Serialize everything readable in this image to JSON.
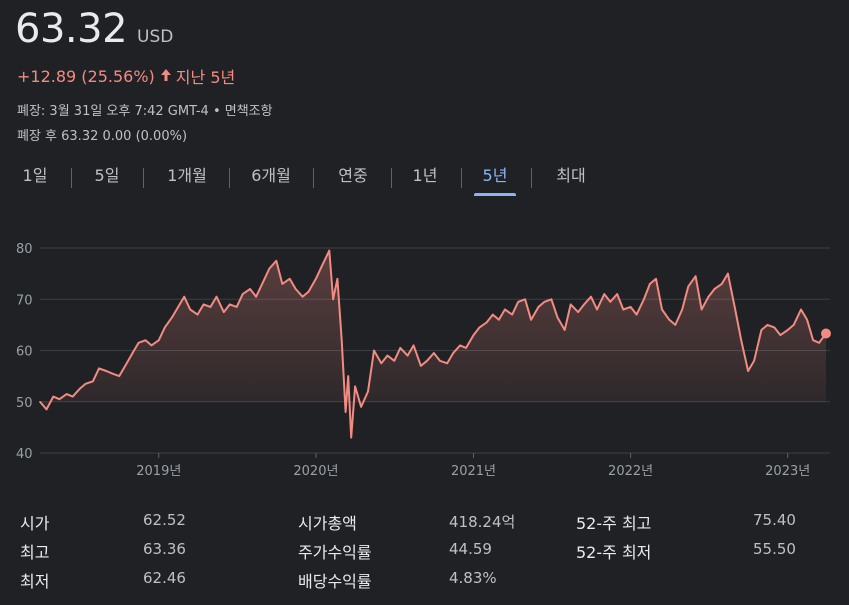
{
  "quote": {
    "price": "63.32",
    "currency": "USD",
    "change": "+12.89 (25.56%)",
    "period": "지난 5년",
    "close_info": "폐장: 3월 31일 오후 7:42 GMT-4 • 면책조항",
    "after_hours": "폐장 후 63.32 0.00 (0.00%)"
  },
  "tabs": [
    {
      "label": "1일"
    },
    {
      "label": "5일"
    },
    {
      "label": "1개월"
    },
    {
      "label": "6개월"
    },
    {
      "label": "연중"
    },
    {
      "label": "1년"
    },
    {
      "label": "5년"
    },
    {
      "label": "최대"
    }
  ],
  "stats": {
    "open_label": "시가",
    "open_value": "62.52",
    "high_label": "최고",
    "high_value": "63.36",
    "low_label": "최저",
    "low_value": "62.46",
    "mktcap_label": "시가총액",
    "mktcap_value": "418.24억",
    "pe_label": "주가수익률",
    "pe_value": "44.59",
    "div_label": "배당수익률",
    "div_value": "4.83%",
    "high52_label": "52-주 최고",
    "high52_value": "75.40",
    "low52_label": "52-주 최저",
    "low52_value": "55.50"
  },
  "colors": {
    "line": "#f28b82",
    "active_tab": "#8ab4f8",
    "background": "#202124"
  },
  "chart_data": {
    "type": "area",
    "xlabel": "",
    "ylabel": "",
    "ylim": [
      40,
      80
    ],
    "xlim": [
      "2018-03-31",
      "2023-03-31"
    ],
    "yticks": [
      40,
      50,
      60,
      70,
      80
    ],
    "xticks": [
      {
        "label": "2019년",
        "date": "2019-01-01"
      },
      {
        "label": "2020년",
        "date": "2020-01-01"
      },
      {
        "label": "2021년",
        "date": "2021-01-01"
      },
      {
        "label": "2022년",
        "date": "2022-01-01"
      },
      {
        "label": "2023년",
        "date": "2023-01-01"
      }
    ],
    "grid": true,
    "series": [
      {
        "x": [
          "2018-03-31",
          "2018-04-15",
          "2018-05-01",
          "2018-05-15",
          "2018-06-01",
          "2018-06-15",
          "2018-07-01",
          "2018-07-15",
          "2018-08-01",
          "2018-08-15",
          "2018-09-01",
          "2018-09-15",
          "2018-10-01",
          "2018-10-15",
          "2018-11-01",
          "2018-11-15",
          "2018-12-01",
          "2018-12-15",
          "2019-01-01",
          "2019-01-15",
          "2019-02-01",
          "2019-02-15",
          "2019-03-01",
          "2019-03-15",
          "2019-04-01",
          "2019-04-15",
          "2019-05-01",
          "2019-05-15",
          "2019-06-01",
          "2019-06-15",
          "2019-07-01",
          "2019-07-15",
          "2019-08-01",
          "2019-08-15",
          "2019-09-01",
          "2019-09-15",
          "2019-10-01",
          "2019-10-15",
          "2019-11-01",
          "2019-11-15",
          "2019-12-01",
          "2019-12-15",
          "2020-01-01",
          "2020-01-15",
          "2020-02-01",
          "2020-02-10",
          "2020-02-20",
          "2020-03-01",
          "2020-03-10",
          "2020-03-16",
          "2020-03-23",
          "2020-04-01",
          "2020-04-15",
          "2020-05-01",
          "2020-05-15",
          "2020-06-01",
          "2020-06-15",
          "2020-07-01",
          "2020-07-15",
          "2020-08-01",
          "2020-08-15",
          "2020-09-01",
          "2020-09-15",
          "2020-10-01",
          "2020-10-15",
          "2020-11-01",
          "2020-11-15",
          "2020-12-01",
          "2020-12-15",
          "2021-01-01",
          "2021-01-15",
          "2021-02-01",
          "2021-02-15",
          "2021-03-01",
          "2021-03-15",
          "2021-04-01",
          "2021-04-15",
          "2021-05-01",
          "2021-05-15",
          "2021-06-01",
          "2021-06-15",
          "2021-07-01",
          "2021-07-15",
          "2021-08-01",
          "2021-08-15",
          "2021-09-01",
          "2021-09-15",
          "2021-10-01",
          "2021-10-15",
          "2021-11-01",
          "2021-11-15",
          "2021-12-01",
          "2021-12-15",
          "2022-01-01",
          "2022-01-15",
          "2022-02-01",
          "2022-02-15",
          "2022-03-01",
          "2022-03-15",
          "2022-04-01",
          "2022-04-15",
          "2022-05-01",
          "2022-05-15",
          "2022-06-01",
          "2022-06-15",
          "2022-07-01",
          "2022-07-15",
          "2022-08-01",
          "2022-08-15",
          "2022-09-01",
          "2022-09-15",
          "2022-10-01",
          "2022-10-15",
          "2022-11-01",
          "2022-11-15",
          "2022-12-01",
          "2022-12-15",
          "2023-01-01",
          "2023-01-15",
          "2023-02-01",
          "2023-02-15",
          "2023-03-01",
          "2023-03-15",
          "2023-03-31"
        ],
        "values": [
          50.0,
          48.5,
          51.0,
          50.5,
          51.5,
          51.0,
          52.5,
          53.5,
          54.0,
          56.5,
          56.0,
          55.5,
          55.0,
          57.0,
          59.5,
          61.5,
          62.0,
          61.0,
          62.0,
          64.5,
          66.5,
          68.5,
          70.5,
          68.0,
          67.0,
          69.0,
          68.5,
          70.5,
          67.5,
          69.0,
          68.5,
          71.0,
          72.0,
          70.5,
          73.5,
          76.0,
          77.5,
          73.0,
          74.0,
          72.0,
          70.5,
          71.5,
          74.0,
          76.5,
          79.5,
          70.0,
          74.0,
          62.0,
          48.0,
          55.0,
          43.0,
          53.0,
          49.0,
          52.0,
          60.0,
          57.5,
          59.0,
          58.0,
          60.5,
          59.0,
          61.0,
          57.0,
          58.0,
          59.5,
          58.0,
          57.5,
          59.5,
          61.0,
          60.5,
          63.0,
          64.5,
          65.5,
          67.0,
          66.0,
          68.0,
          67.0,
          69.5,
          70.0,
          66.0,
          68.5,
          69.5,
          70.0,
          66.5,
          64.0,
          69.0,
          67.5,
          69.0,
          70.5,
          68.0,
          71.0,
          69.5,
          71.0,
          68.0,
          68.5,
          67.0,
          70.0,
          73.0,
          74.0,
          68.0,
          66.0,
          65.0,
          68.0,
          72.5,
          74.5,
          68.0,
          70.5,
          72.0,
          73.0,
          75.0,
          68.0,
          62.0,
          56.0,
          58.0,
          64.0,
          65.0,
          64.5,
          63.0,
          64.0,
          65.0,
          68.0,
          66.0,
          62.0,
          61.5,
          63.32
        ]
      }
    ]
  }
}
